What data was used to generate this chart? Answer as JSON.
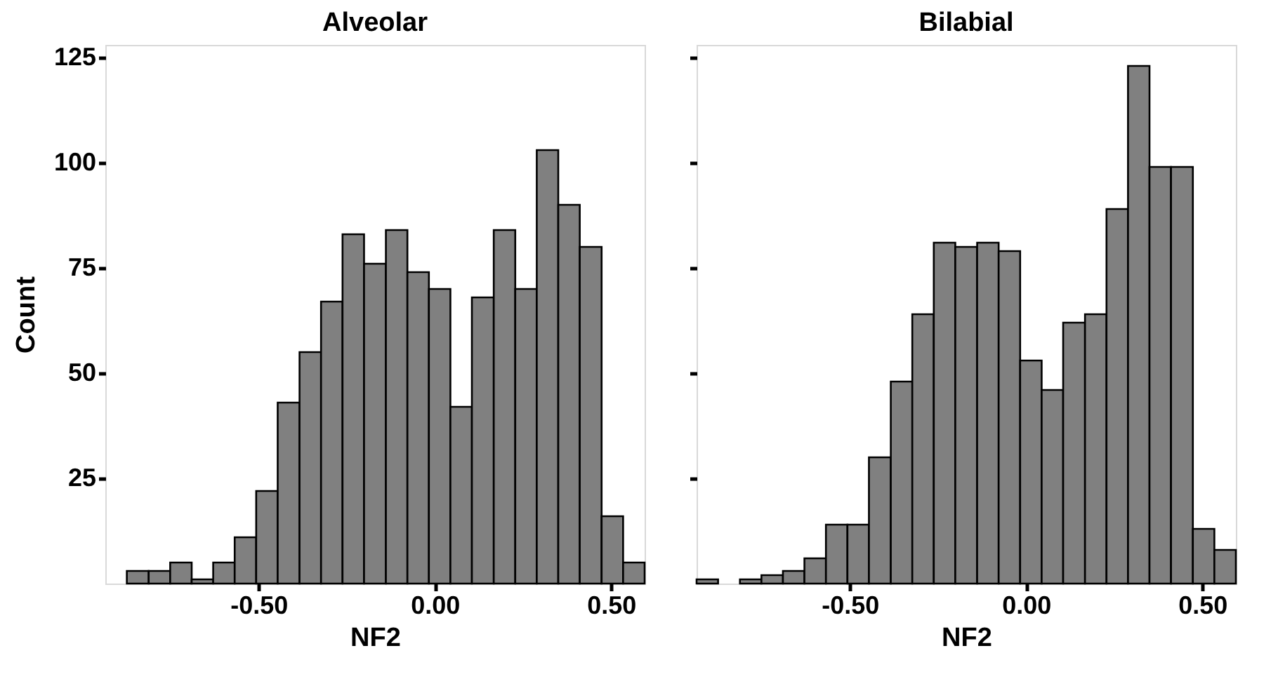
{
  "chart_data": [
    {
      "type": "histogram",
      "title": "Alveolar",
      "xlabel": "NF2",
      "ylabel": "Count",
      "color": "#808080",
      "bins": [
        -0.874,
        -0.812,
        -0.751,
        -0.69,
        -0.629,
        -0.568,
        -0.507,
        -0.446,
        -0.384,
        -0.323,
        -0.262,
        -0.201,
        -0.139,
        -0.078,
        -0.017,
        0.044,
        0.105,
        0.167,
        0.228,
        0.289,
        0.35,
        0.411,
        0.473,
        0.534,
        0.595
      ],
      "values": [
        3,
        3,
        5,
        1,
        5,
        11,
        22,
        43,
        55,
        67,
        83,
        76,
        84,
        74,
        70,
        42,
        68,
        84,
        70,
        103,
        90,
        80,
        16,
        5
      ],
      "xlim": [
        -0.935,
        0.595
      ],
      "ylim": [
        0,
        128
      ],
      "xticks": [
        {
          "value": -0.5,
          "label": "-0.50"
        },
        {
          "value": 0,
          "label": "0.00"
        },
        {
          "value": 0.5,
          "label": "0.50"
        }
      ],
      "yticks": [
        25,
        50,
        75,
        100,
        125
      ],
      "grid": false
    },
    {
      "type": "histogram",
      "title": "Bilabial",
      "xlabel": "NF2",
      "color": "#808080",
      "bins": [
        -0.935,
        -0.874,
        -0.812,
        -0.751,
        -0.69,
        -0.629,
        -0.568,
        -0.507,
        -0.446,
        -0.384,
        -0.323,
        -0.262,
        -0.201,
        -0.139,
        -0.078,
        -0.017,
        0.044,
        0.105,
        0.167,
        0.228,
        0.289,
        0.35,
        0.411,
        0.473,
        0.534,
        0.595
      ],
      "values": [
        1,
        0,
        1,
        2,
        3,
        6,
        14,
        14,
        30,
        48,
        64,
        81,
        80,
        81,
        79,
        53,
        46,
        62,
        64,
        89,
        123,
        99,
        99,
        13,
        8
      ],
      "xlim": [
        -0.935,
        0.595
      ],
      "ylim": [
        0,
        128
      ],
      "xticks": [
        {
          "value": -0.5,
          "label": "-0.50"
        },
        {
          "value": 0,
          "label": "0.00"
        },
        {
          "value": 0.5,
          "label": "0.50"
        }
      ],
      "yticks": [
        25,
        50,
        75,
        100,
        125
      ],
      "grid": false,
      "tick_labels": "x"
    }
  ]
}
